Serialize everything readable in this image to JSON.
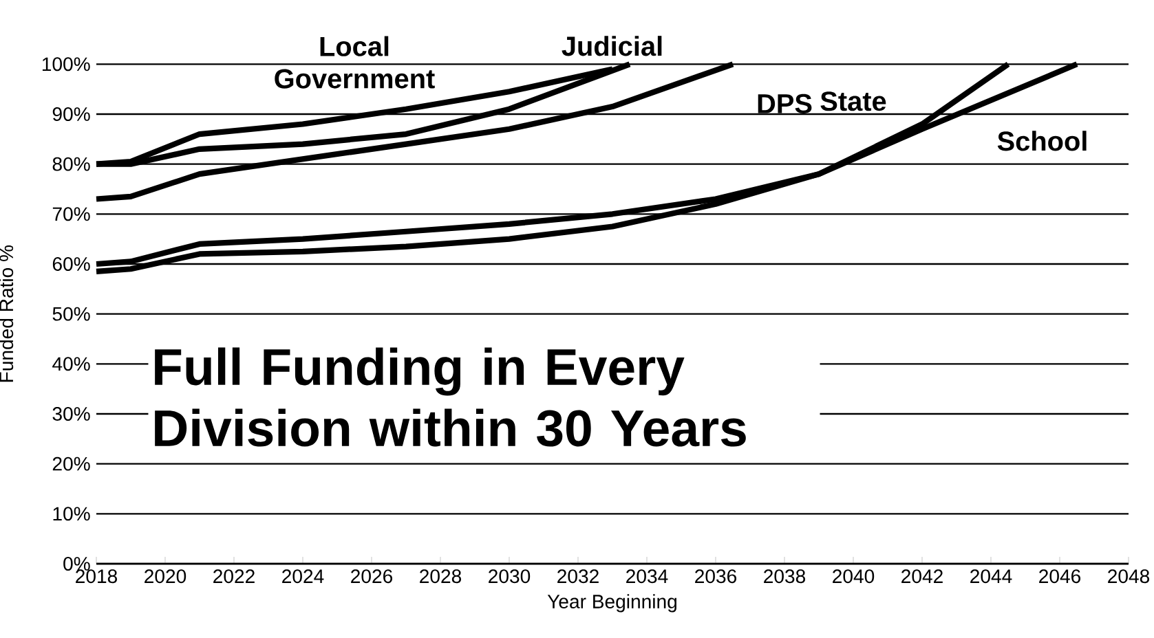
{
  "chart_data": {
    "type": "line",
    "xlabel": "Year Beginning",
    "ylabel": "Funded Ratio %",
    "annotations": [
      "Full Funding in Every Division within 30 Years"
    ],
    "series": [
      {
        "name": "Local Government",
        "color": "#000000",
        "x": [
          2018,
          2019,
          2021,
          2024,
          2027,
          2030,
          2033
        ],
        "values": [
          80,
          80.5,
          86,
          88,
          91,
          94.5,
          99
        ]
      },
      {
        "name": "Judicial",
        "color": "#000000",
        "x": [
          2018,
          2019,
          2021,
          2024,
          2027,
          2030,
          2033.5
        ],
        "values": [
          80,
          80,
          83,
          84,
          86,
          91,
          100
        ]
      },
      {
        "name": "DPS",
        "color": "#000000",
        "x": [
          2018,
          2019,
          2021,
          2024,
          2027,
          2030,
          2033,
          2036.5
        ],
        "values": [
          73,
          73.5,
          78,
          81,
          84,
          87,
          91.5,
          100
        ]
      },
      {
        "name": "State",
        "color": "#000000",
        "x": [
          2018,
          2019,
          2021,
          2024,
          2027,
          2030,
          2033,
          2036,
          2039,
          2042,
          2044.5
        ],
        "values": [
          58.5,
          59,
          62,
          62.5,
          63.5,
          65,
          67.5,
          72,
          78,
          88,
          100
        ]
      },
      {
        "name": "School",
        "color": "#000000",
        "x": [
          2018,
          2019,
          2021,
          2024,
          2027,
          2030,
          2033,
          2036,
          2039,
          2042,
          2046.5
        ],
        "values": [
          60,
          60.5,
          64,
          65,
          66.5,
          68,
          70,
          73,
          78,
          87,
          100
        ]
      }
    ],
    "xlim": [
      2018,
      2048
    ],
    "xticks": [
      2018,
      2020,
      2022,
      2024,
      2026,
      2028,
      2030,
      2032,
      2034,
      2036,
      2038,
      2040,
      2042,
      2044,
      2046,
      2048
    ],
    "ylim": [
      0,
      100
    ],
    "yticks": [
      {
        "value": 0,
        "label": "0%"
      },
      {
        "value": 10,
        "label": "10%"
      },
      {
        "value": 20,
        "label": "20%"
      },
      {
        "value": 30,
        "label": "30%"
      },
      {
        "value": 40,
        "label": "40%"
      },
      {
        "value": 50,
        "label": "50%"
      },
      {
        "value": 60,
        "label": "60%"
      },
      {
        "value": 70,
        "label": "70%"
      },
      {
        "value": 80,
        "label": "80%"
      },
      {
        "value": 90,
        "label": "90%"
      },
      {
        "value": 100,
        "label": "100%"
      }
    ],
    "grid": "y",
    "legend": false,
    "marker": "none",
    "line_style": "solid"
  }
}
